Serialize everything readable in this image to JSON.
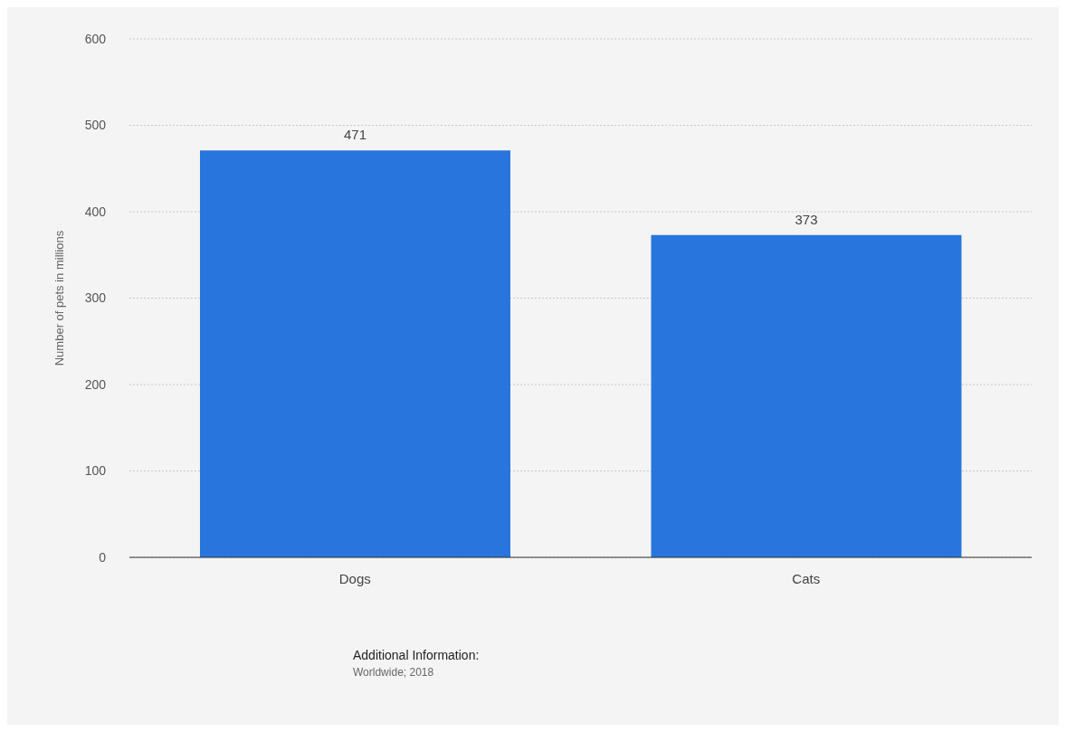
{
  "chart_data": {
    "type": "bar",
    "ylabel": "Number of pets in millions",
    "categories": [
      "Dogs",
      "Cats"
    ],
    "values": [
      471,
      373
    ],
    "color": "#2876dd",
    "ylim": [
      0,
      600
    ],
    "yticks": [
      0,
      100,
      200,
      300,
      400,
      500,
      600
    ],
    "grid": "y",
    "data_labels": true,
    "annotations": [
      "Additional Information:",
      "Worldwide; 2018"
    ]
  }
}
